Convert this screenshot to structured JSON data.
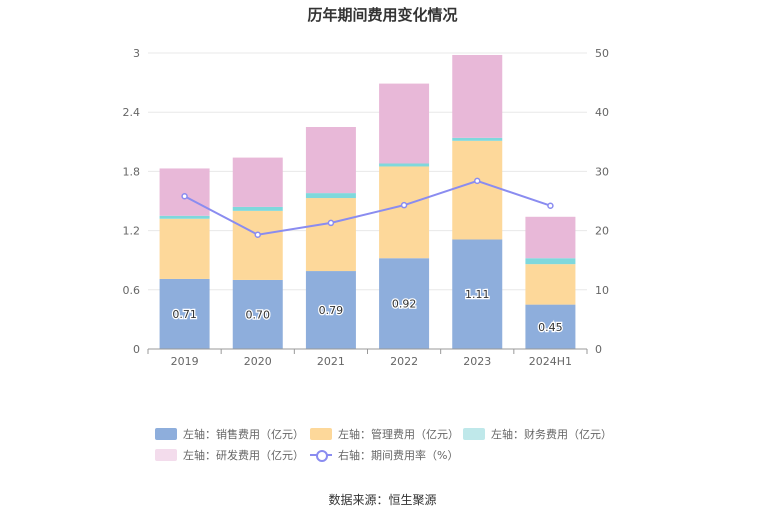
{
  "title": "历年期间费用变化情况",
  "source": "数据来源：恒生聚源",
  "legend": [
    {
      "label": "左轴：销售费用（亿元）",
      "color": "#8eaedc"
    },
    {
      "label": "左轴：管理费用（亿元）",
      "color": "#fdd89a"
    },
    {
      "label": "左轴：财务费用（亿元）",
      "color": "#7fd8dc"
    },
    {
      "label": "左轴：研发费用（亿元）",
      "color": "#e8b8d8"
    },
    {
      "label": "右轴：期间费用率（%）",
      "color": "#8a8cf0"
    }
  ],
  "chart_data": {
    "type": "bar",
    "stacked": true,
    "title": "历年期间费用变化情况",
    "categories": [
      "2019",
      "2020",
      "2021",
      "2022",
      "2023",
      "2024H1"
    ],
    "y_left": {
      "min": 0,
      "max": 3,
      "ticks": [
        "0",
        "0.6",
        "1.2",
        "1.8",
        "2.4",
        "3"
      ]
    },
    "y_right": {
      "min": 0,
      "max": 50,
      "ticks": [
        "0",
        "10",
        "20",
        "30",
        "40",
        "50"
      ]
    },
    "series": [
      {
        "name": "左轴：销售费用（亿元）",
        "axis": "left",
        "color": "#8eaedc",
        "values": [
          0.71,
          0.7,
          0.79,
          0.92,
          1.11,
          0.45
        ],
        "labels": [
          "0.71",
          "0.70",
          "0.79",
          "0.92",
          "1.11",
          "0.45"
        ]
      },
      {
        "name": "左轴：管理费用（亿元）",
        "axis": "left",
        "color": "#fdd89a",
        "values": [
          0.61,
          0.7,
          0.74,
          0.93,
          1.0,
          0.41
        ]
      },
      {
        "name": "左轴：财务费用（亿元）",
        "axis": "left",
        "color": "#7fd8dc",
        "values": [
          0.03,
          0.04,
          0.05,
          0.03,
          0.03,
          0.06
        ]
      },
      {
        "name": "左轴：研发费用（亿元）",
        "axis": "left",
        "color": "#e8b8d8",
        "values": [
          0.48,
          0.5,
          0.67,
          0.81,
          0.84,
          0.42
        ]
      },
      {
        "name": "右轴：期间费用率（%）",
        "axis": "right",
        "type": "line",
        "color": "#8a8cf0",
        "values": [
          25.8,
          19.3,
          21.3,
          24.3,
          28.4,
          24.2
        ]
      }
    ],
    "grid": true,
    "legend_position": "bottom"
  }
}
